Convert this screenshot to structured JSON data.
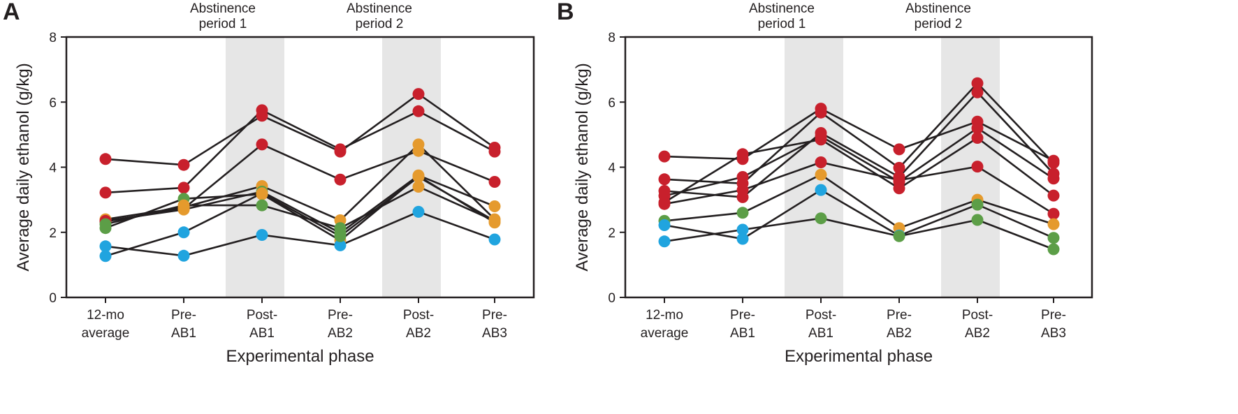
{
  "colors": {
    "red": "#c8202c",
    "orange": "#e59a2d",
    "green": "#5c9e47",
    "blue": "#20a4df",
    "band": "#e6e6e6",
    "ink": "#231f20"
  },
  "chart_data": [
    {
      "type": "line",
      "panel_label": "A",
      "xlabel": "Experimental phase",
      "ylabel": "Average daily ethanol (g/kg)",
      "ylim": [
        0,
        8
      ],
      "yticks": [
        "0",
        "2",
        "4",
        "6",
        "8"
      ],
      "categories": [
        [
          "12-mo",
          "average"
        ],
        [
          "Pre-",
          "AB1"
        ],
        [
          "Post-",
          "AB1"
        ],
        [
          "Pre-",
          "AB2"
        ],
        [
          "Post-",
          "AB2"
        ],
        [
          "Pre-",
          "AB3"
        ]
      ],
      "shaded_periods": [
        {
          "label": [
            "Abstinence",
            "period 1"
          ],
          "from_category": 1,
          "to_category": 2
        },
        {
          "label": [
            "Abstinence",
            "period 2"
          ],
          "from_category": 3,
          "to_category": 4
        }
      ],
      "series": [
        {
          "values": [
            4.25,
            4.07,
            5.58,
            4.48,
            6.25,
            4.6
          ],
          "colors": [
            "red",
            "red",
            "red",
            "red",
            "red",
            "red"
          ]
        },
        {
          "values": [
            3.22,
            3.37,
            5.75,
            4.55,
            5.72,
            4.48
          ],
          "colors": [
            "red",
            "red",
            "red",
            "red",
            "red",
            "red"
          ]
        },
        {
          "values": [
            2.33,
            2.73,
            4.7,
            3.62,
            4.5,
            3.55
          ],
          "colors": [
            "red",
            "red",
            "red",
            "red",
            "orange",
            "red"
          ]
        },
        {
          "values": [
            2.4,
            2.77,
            3.42,
            2.37,
            4.7,
            2.4
          ],
          "colors": [
            "orange",
            "orange",
            "orange",
            "orange",
            "orange",
            "orange"
          ]
        },
        {
          "values": [
            2.35,
            2.7,
            3.25,
            1.98,
            3.75,
            2.8
          ],
          "colors": [
            "red",
            "orange",
            "green",
            "green",
            "orange",
            "orange"
          ]
        },
        {
          "values": [
            2.13,
            3.03,
            3.17,
            1.75,
            3.73,
            2.3
          ],
          "colors": [
            "green",
            "green",
            "orange",
            "orange",
            "orange",
            "orange"
          ]
        },
        {
          "values": [
            2.25,
            2.83,
            2.83,
            2.13,
            3.4,
            2.35
          ],
          "colors": [
            "green",
            "orange",
            "green",
            "green",
            "orange",
            "orange"
          ]
        },
        {
          "values": [
            1.57,
            1.28,
            1.92,
            1.6,
            2.63,
            1.78
          ],
          "colors": [
            "blue",
            "blue",
            "blue",
            "blue",
            "blue",
            "blue"
          ]
        },
        {
          "values": [
            1.27,
            2.0,
            3.2,
            1.88,
            3.7,
            2.35
          ],
          "colors": [
            "blue",
            "blue",
            "orange",
            "green",
            "orange",
            "orange"
          ]
        }
      ]
    },
    {
      "type": "line",
      "panel_label": "B",
      "xlabel": "Experimental phase",
      "ylabel": "Average daily ethanol (g/kg)",
      "ylim": [
        0,
        8
      ],
      "yticks": [
        "0",
        "2",
        "4",
        "6",
        "8"
      ],
      "categories": [
        [
          "12-mo",
          "average"
        ],
        [
          "Pre-",
          "AB1"
        ],
        [
          "Post-",
          "AB1"
        ],
        [
          "Pre-",
          "AB2"
        ],
        [
          "Post-",
          "AB2"
        ],
        [
          "Pre-",
          "AB3"
        ]
      ],
      "shaded_periods": [
        {
          "label": [
            "Abstinence",
            "period 1"
          ],
          "from_category": 1,
          "to_category": 2
        },
        {
          "label": [
            "Abstinence",
            "period 2"
          ],
          "from_category": 3,
          "to_category": 4
        }
      ],
      "series": [
        {
          "values": [
            4.33,
            4.25,
            5.8,
            4.55,
            5.4,
            4.2
          ],
          "colors": [
            "red",
            "red",
            "red",
            "red",
            "red",
            "red"
          ]
        },
        {
          "values": [
            3.63,
            3.5,
            5.68,
            3.98,
            6.58,
            4.13
          ],
          "colors": [
            "red",
            "red",
            "red",
            "red",
            "red",
            "red"
          ]
        },
        {
          "values": [
            3.27,
            3.08,
            5.05,
            3.7,
            6.3,
            3.8
          ],
          "colors": [
            "red",
            "red",
            "red",
            "red",
            "red",
            "red"
          ]
        },
        {
          "values": [
            3.12,
            3.7,
            4.95,
            3.55,
            5.2,
            3.65
          ],
          "colors": [
            "red",
            "red",
            "red",
            "red",
            "red",
            "red"
          ]
        },
        {
          "values": [
            2.92,
            4.4,
            4.85,
            3.35,
            4.9,
            3.13
          ],
          "colors": [
            "red",
            "red",
            "red",
            "red",
            "red",
            "red"
          ]
        },
        {
          "values": [
            2.87,
            3.3,
            4.15,
            3.6,
            4.02,
            2.57
          ],
          "colors": [
            "red",
            "red",
            "red",
            "red",
            "red",
            "red"
          ]
        },
        {
          "values": [
            2.35,
            2.6,
            3.77,
            2.13,
            3.0,
            2.25
          ],
          "colors": [
            "green",
            "green",
            "orange",
            "orange",
            "orange",
            "orange"
          ]
        },
        {
          "values": [
            2.22,
            1.8,
            3.3,
            1.9,
            2.85,
            1.83
          ],
          "colors": [
            "blue",
            "blue",
            "blue",
            "blue",
            "green",
            "green"
          ]
        },
        {
          "values": [
            1.72,
            2.08,
            2.43,
            1.88,
            2.38,
            1.48
          ],
          "colors": [
            "blue",
            "blue",
            "green",
            "green",
            "green",
            "green"
          ]
        }
      ]
    }
  ]
}
